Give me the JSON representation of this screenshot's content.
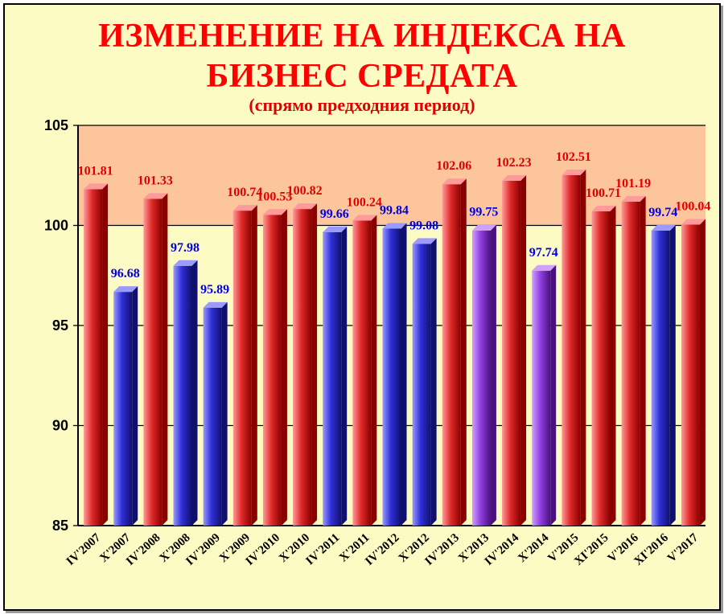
{
  "chart_data": {
    "type": "bar",
    "title_line1": "ИЗМЕНЕНИЕ НА ИНДЕКСА НА",
    "title_line2": "БИЗНЕС СРЕДАТА",
    "subtitle": "(спрямо предходния период)",
    "categories": [
      "IV'2007",
      "X'2007",
      "IV'2008",
      "X'2008",
      "IV'2009",
      "X'2009",
      "IV'2010",
      "X'2010",
      "IV'2011",
      "X'2011",
      "IV'2012",
      "X'2012",
      "IV'2013",
      "X'2013",
      "IV'2014",
      "X'2014",
      "V'2015",
      "XI'2015",
      "V'2016",
      "XI'2016",
      "V'2017"
    ],
    "values": [
      101.81,
      96.68,
      101.33,
      97.98,
      95.89,
      100.74,
      100.53,
      100.82,
      99.66,
      100.24,
      99.84,
      99.08,
      102.06,
      99.75,
      102.23,
      97.74,
      102.51,
      100.71,
      101.19,
      99.74,
      100.04
    ],
    "value_labels": [
      "101.81",
      "96.68",
      "101.33",
      "97.98",
      "95.89",
      "100.74",
      "100.53",
      "100.82",
      "99.66",
      "100.24",
      "99.84",
      "99.08",
      "102.06",
      "99.75",
      "102.23",
      "97.74",
      "102.51",
      "100.71",
      "101.19",
      "99.74",
      "100.04"
    ],
    "bar_colors": [
      "red",
      "blue",
      "red",
      "blue",
      "blue",
      "red",
      "red",
      "red",
      "blue",
      "red",
      "blue",
      "blue",
      "red",
      "purple",
      "red",
      "purple",
      "red",
      "red",
      "red",
      "blue",
      "red"
    ],
    "ylim": [
      85,
      105
    ],
    "yticks": [
      "85",
      "90",
      "95",
      "100",
      "105"
    ],
    "xlabel": "",
    "ylabel": "",
    "grid": true,
    "colors": {
      "red": "#e83a3a",
      "blue": "#3535d8",
      "purple": "#9a4ae8",
      "label_red": "#e00000",
      "label_blue": "#0000e0",
      "plot_upper": "#fcc59b",
      "plot_lower": "#fdfbc4",
      "title": "#ff0000"
    }
  }
}
